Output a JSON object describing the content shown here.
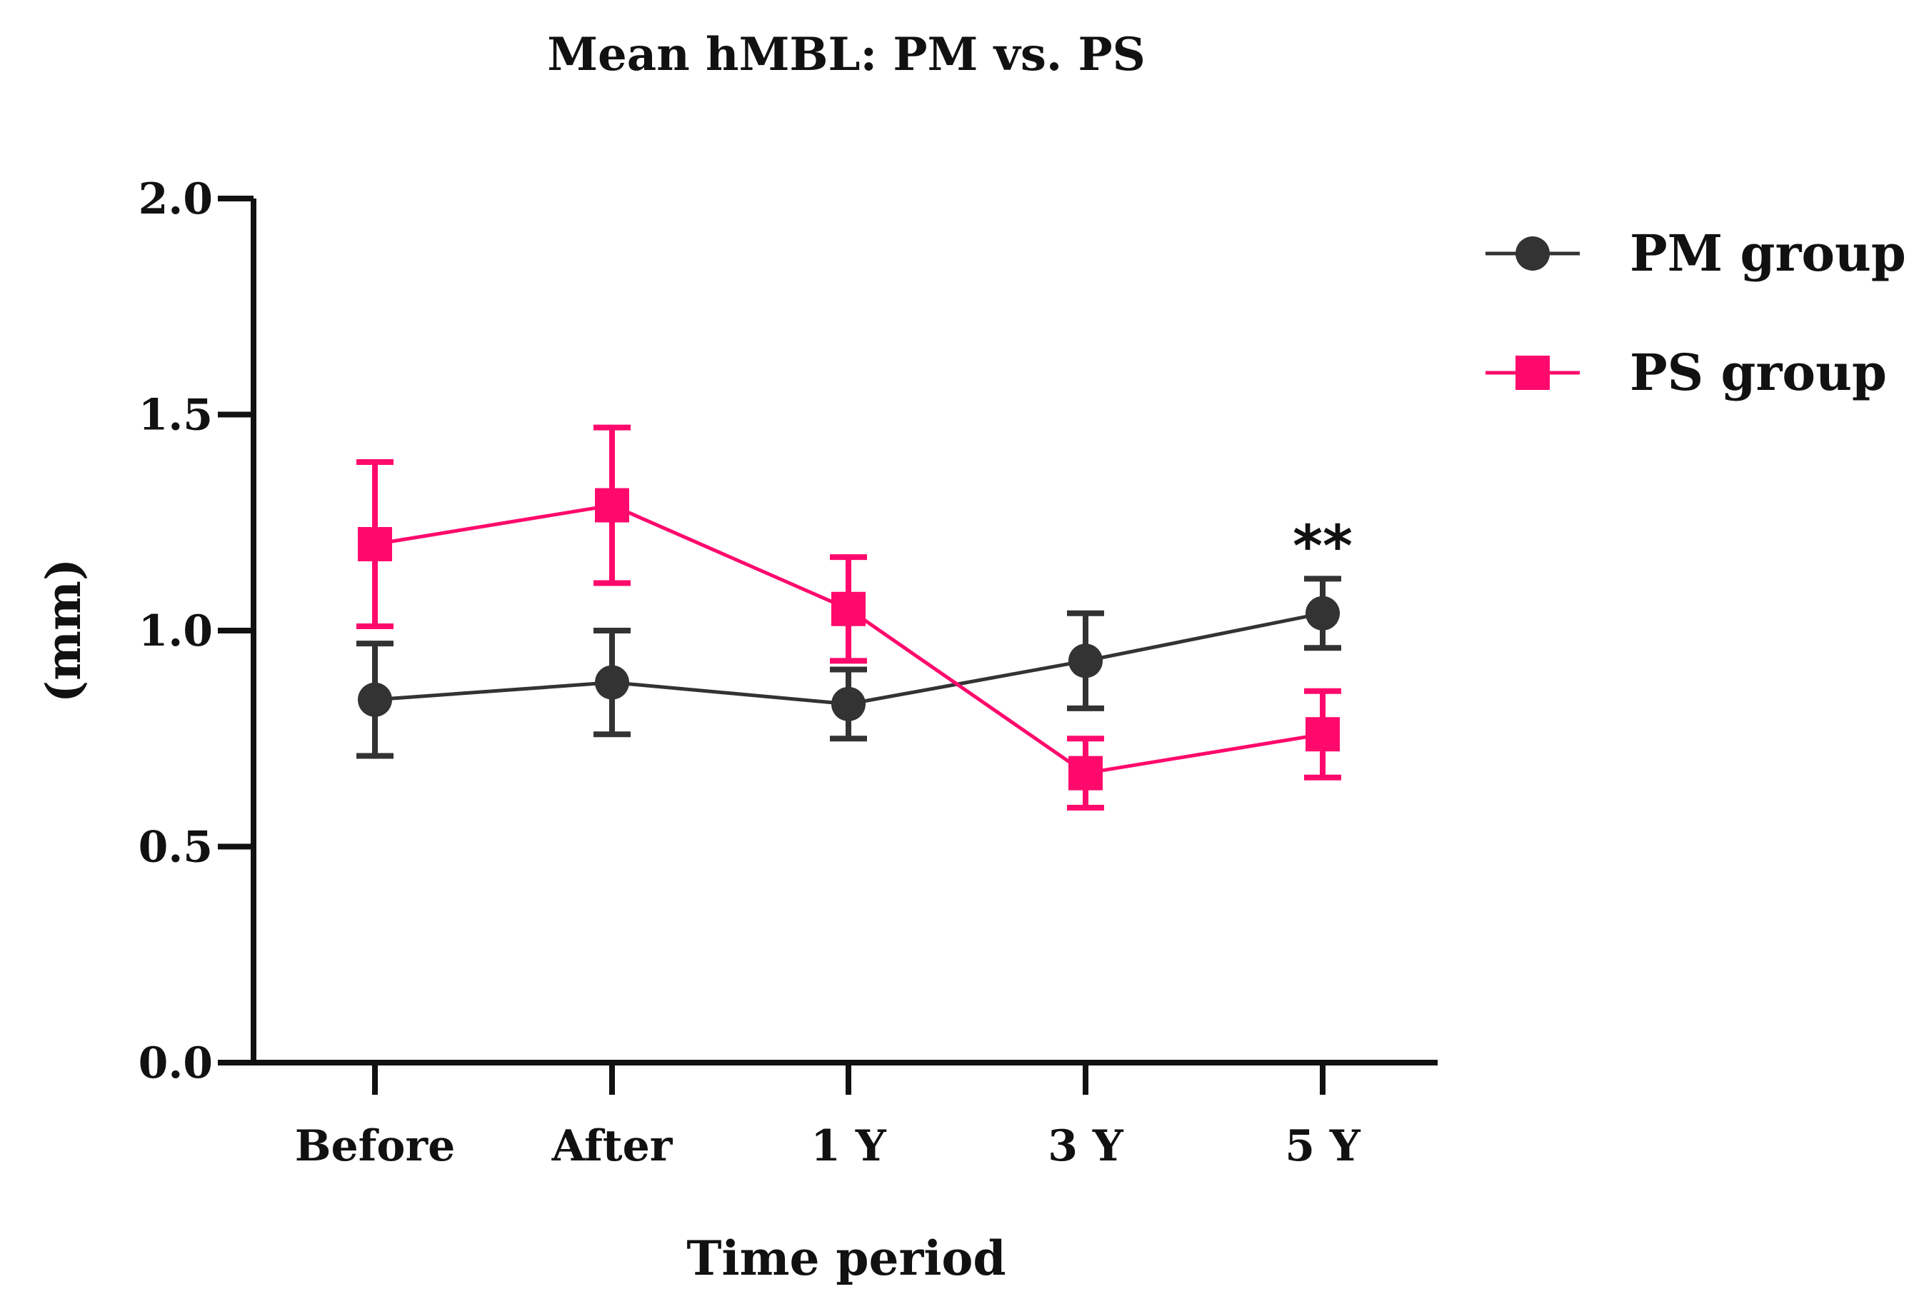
{
  "chart_data": {
    "type": "line",
    "title": "Mean hMBL: PM vs. PS",
    "xlabel": "Time period",
    "ylabel": "(mm)",
    "categories": [
      "Before",
      "After",
      "1 Y",
      "3 Y",
      "5 Y"
    ],
    "ylim": [
      0,
      2
    ],
    "yticks": [
      0.0,
      0.5,
      1.0,
      1.5,
      2.0
    ],
    "ytick_labels": [
      "0.0",
      "0.5",
      "1.0",
      "1.5",
      "2.0"
    ],
    "legend_position": "top-right",
    "series": [
      {
        "name": "PM group",
        "marker": "circle",
        "color": "#333333",
        "values": [
          0.84,
          0.88,
          0.83,
          0.93,
          1.04
        ],
        "error": [
          0.13,
          0.12,
          0.08,
          0.11,
          0.08
        ]
      },
      {
        "name": "PS group",
        "marker": "square",
        "color": "#ff0a6c",
        "values": [
          1.2,
          1.29,
          1.05,
          0.67,
          0.76
        ],
        "error": [
          0.19,
          0.18,
          0.12,
          0.08,
          0.1
        ]
      }
    ],
    "annotations": [
      {
        "category": "5 Y",
        "text": "**"
      }
    ]
  }
}
